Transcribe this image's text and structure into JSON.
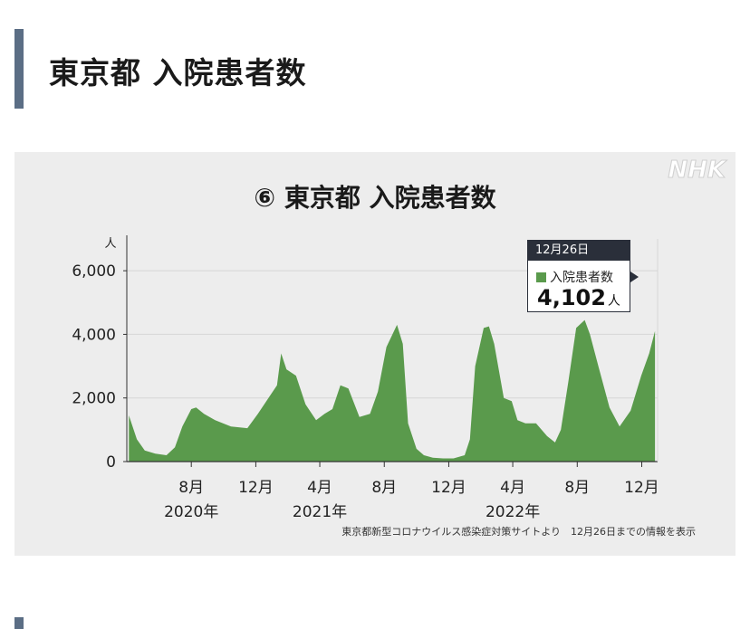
{
  "header": {
    "title": "東京都 入院患者数"
  },
  "chart_data": {
    "type": "area",
    "title": "⑥ 東京都 入院患者数",
    "watermark": "NHK",
    "ylabel": "人",
    "ylim": [
      0,
      7000
    ],
    "yticks": [
      {
        "value": 0,
        "label": "0"
      },
      {
        "value": 2000,
        "label": "2,000"
      },
      {
        "value": 4000,
        "label": "4,000"
      },
      {
        "value": 6000,
        "label": "6,000"
      }
    ],
    "xticks": [
      {
        "date": "2020-08-01",
        "label": "8月"
      },
      {
        "date": "2020-12-01",
        "label": "12月"
      },
      {
        "date": "2021-04-01",
        "label": "4月"
      },
      {
        "date": "2021-08-01",
        "label": "8月"
      },
      {
        "date": "2021-12-01",
        "label": "12月"
      },
      {
        "date": "2022-04-01",
        "label": "4月"
      },
      {
        "date": "2022-08-01",
        "label": "8月"
      },
      {
        "date": "2022-12-01",
        "label": "12月"
      }
    ],
    "years": [
      {
        "date": "2020-08-01",
        "label": "2020年"
      },
      {
        "date": "2021-04-01",
        "label": "2021年"
      },
      {
        "date": "2022-04-01",
        "label": "2022年"
      }
    ],
    "grid": true,
    "color": "#5a9a4c",
    "series": [
      {
        "name": "入院患者数",
        "x": [
          "2020-04-05",
          "2020-04-20",
          "2020-05-05",
          "2020-05-25",
          "2020-06-15",
          "2020-07-01",
          "2020-07-15",
          "2020-08-01",
          "2020-08-10",
          "2020-08-25",
          "2020-09-15",
          "2020-10-15",
          "2020-11-15",
          "2020-12-05",
          "2020-12-25",
          "2021-01-10",
          "2021-01-18",
          "2021-01-28",
          "2021-02-15",
          "2021-03-05",
          "2021-03-25",
          "2021-04-10",
          "2021-04-25",
          "2021-05-10",
          "2021-05-25",
          "2021-06-15",
          "2021-07-05",
          "2021-07-20",
          "2021-08-05",
          "2021-08-25",
          "2021-09-05",
          "2021-09-15",
          "2021-10-01",
          "2021-10-15",
          "2021-11-01",
          "2021-11-20",
          "2021-12-10",
          "2021-12-31",
          "2022-01-10",
          "2022-01-20",
          "2022-02-05",
          "2022-02-15",
          "2022-02-25",
          "2022-03-15",
          "2022-03-30",
          "2022-04-10",
          "2022-04-25",
          "2022-05-15",
          "2022-06-05",
          "2022-06-20",
          "2022-07-01",
          "2022-07-15",
          "2022-07-30",
          "2022-08-15",
          "2022-08-25",
          "2022-09-10",
          "2022-10-01",
          "2022-10-20",
          "2022-11-10",
          "2022-11-30",
          "2022-12-15",
          "2022-12-26"
        ],
        "values": [
          1450,
          700,
          350,
          250,
          200,
          450,
          1100,
          1650,
          1700,
          1500,
          1300,
          1100,
          1050,
          1500,
          2000,
          2400,
          3400,
          2900,
          2700,
          1800,
          1300,
          1500,
          1650,
          2400,
          2300,
          1400,
          1500,
          2200,
          3600,
          4300,
          3700,
          1200,
          400,
          200,
          120,
          100,
          100,
          200,
          700,
          3000,
          4200,
          4250,
          3700,
          2000,
          1900,
          1300,
          1200,
          1200,
          800,
          600,
          1000,
          2500,
          4200,
          4450,
          4000,
          3000,
          1700,
          1100,
          1600,
          2700,
          3400,
          4102
        ]
      }
    ],
    "annotation": {
      "date": "12月26日",
      "series": "入院患者数",
      "value": "4,102",
      "unit": "人"
    },
    "source": "東京都新型コロナウイルス感染症対策サイトより　12月26日までの情報を表示"
  }
}
